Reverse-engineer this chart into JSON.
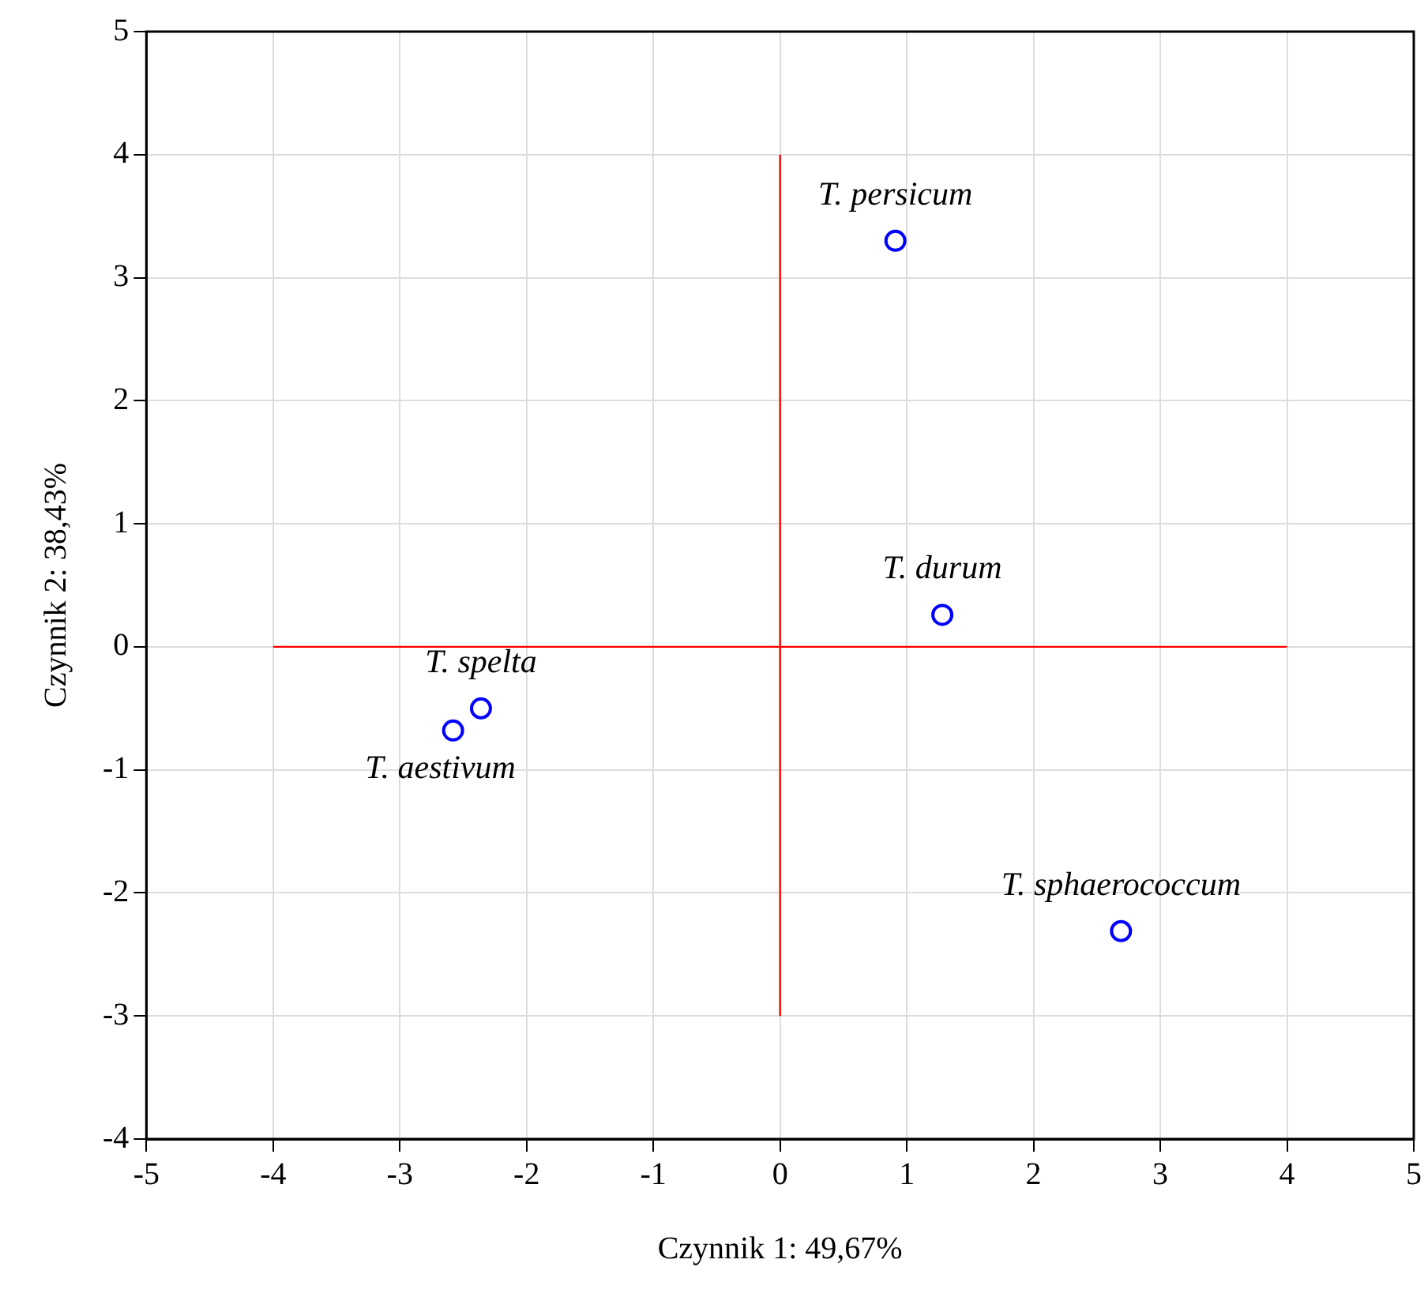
{
  "chart_data": {
    "type": "scatter",
    "xlabel": "Czynnik 1: 49,67%",
    "ylabel": "Czynnik 2: 38,43%",
    "xlim": [
      -5,
      5
    ],
    "xticks": [
      -5,
      -4,
      -3,
      -2,
      -1,
      0,
      1,
      2,
      3,
      4,
      5
    ],
    "ylim": [
      -4,
      5
    ],
    "yticks": [
      -4,
      -3,
      -2,
      -1,
      0,
      1,
      2,
      3,
      4,
      5
    ],
    "grid": true,
    "marker": "circle",
    "series": [
      {
        "type": "line",
        "color": "#ff0000",
        "x": [
          -4,
          4
        ],
        "values": [
          0,
          0
        ],
        "marker": "none"
      },
      {
        "type": "line",
        "color": "#ff0000",
        "x": [
          0,
          0
        ],
        "values": [
          -3,
          4
        ],
        "marker": "none"
      },
      {
        "color": "#0000ff",
        "x": [
          0.91,
          1.28,
          -2.36,
          -2.58,
          2.69
        ],
        "values": [
          3.3,
          0.26,
          -0.5,
          -0.68,
          -2.31
        ]
      }
    ],
    "annotations": [
      {
        "text": "T. persicum",
        "x": 0.91,
        "y": 3.3
      },
      {
        "text": "T. durum",
        "x": 1.28,
        "y": 0.26
      },
      {
        "text": "T. spelta",
        "x": -2.36,
        "y": -0.5
      },
      {
        "text": "T. aestivum",
        "x": -2.58,
        "y": -0.68
      },
      {
        "text": "T. sphaerococcum",
        "x": 2.69,
        "y": -2.31
      }
    ]
  }
}
